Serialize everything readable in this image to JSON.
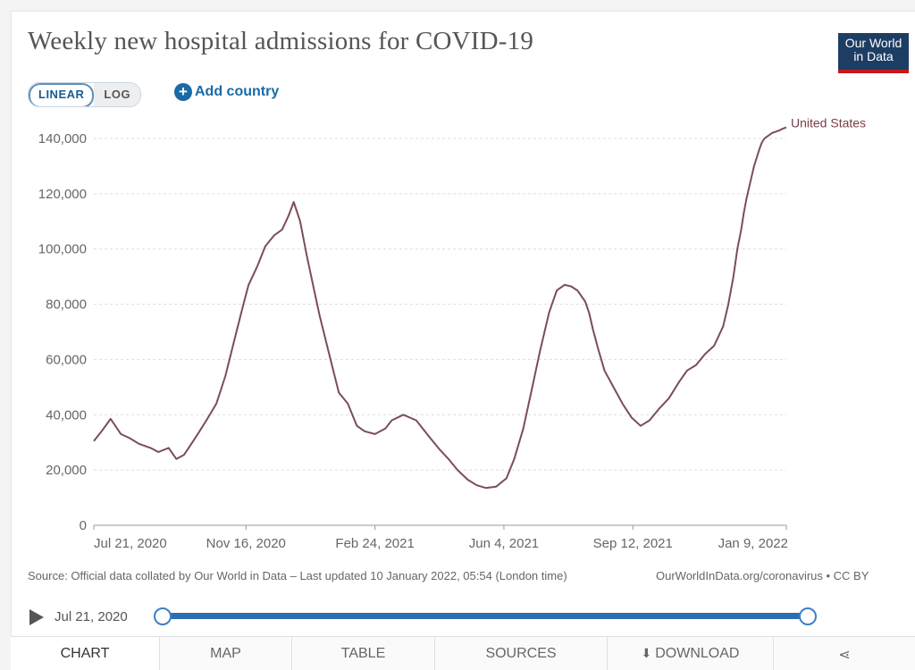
{
  "header": {
    "title": "Weekly new hospital admissions for COVID-19",
    "logo_line1": "Our World",
    "logo_line2": "in Data"
  },
  "controls": {
    "scale_linear": "LINEAR",
    "scale_log": "LOG",
    "add_country": "Add country"
  },
  "chart_data": {
    "type": "line",
    "title": "Weekly new hospital admissions for COVID-19",
    "xlabel": "",
    "ylabel": "",
    "ylim": [
      0,
      140000
    ],
    "y_ticks": [
      "0",
      "20,000",
      "40,000",
      "60,000",
      "80,000",
      "100,000",
      "120,000",
      "140,000"
    ],
    "y_tick_values": [
      0,
      20000,
      40000,
      60000,
      80000,
      100000,
      120000,
      140000
    ],
    "x_tick_labels": [
      "Jul 21, 2020",
      "Nov 16, 2020",
      "Feb 24, 2021",
      "Jun 4, 2021",
      "Sep 12, 2021",
      "Jan 9, 2022"
    ],
    "x_tick_days": [
      0,
      118,
      218,
      318,
      418,
      537
    ],
    "xlim_days": [
      0,
      537
    ],
    "series": [
      {
        "name": "United States",
        "color": "#7a4e55",
        "x_days": [
          0,
          6,
          13,
          21,
          28,
          35,
          44,
          50,
          58,
          64,
          70,
          75,
          82,
          88,
          95,
          102,
          110,
          116,
          120,
          127,
          133,
          140,
          146,
          151,
          155,
          160,
          165,
          170,
          175,
          183,
          190,
          197,
          204,
          210,
          218,
          226,
          231,
          240,
          250,
          261,
          268,
          275,
          282,
          290,
          297,
          304,
          312,
          320,
          326,
          333,
          340,
          346,
          353,
          359,
          365,
          370,
          375,
          381,
          384,
          387,
          391,
          396,
          403,
          410,
          417,
          424,
          431,
          438,
          446,
          454,
          460,
          467,
          474,
          481,
          488,
          492,
          496,
          499,
          502,
          504,
          506,
          508,
          510,
          512,
          514,
          516,
          518,
          520,
          523,
          526,
          529,
          532,
          534,
          537
        ],
        "values": [
          30500,
          34000,
          38500,
          33000,
          31500,
          29500,
          28000,
          26500,
          28000,
          24000,
          25500,
          29000,
          34000,
          38500,
          44000,
          54000,
          69000,
          80000,
          87000,
          94000,
          101000,
          105000,
          107000,
          112000,
          117000,
          110000,
          98000,
          87000,
          76000,
          61000,
          48000,
          44000,
          36000,
          34000,
          33000,
          35000,
          38000,
          40000,
          38000,
          31500,
          27500,
          24000,
          20000,
          16500,
          14500,
          13500,
          14000,
          17000,
          24000,
          35000,
          50000,
          63000,
          77000,
          85000,
          87000,
          86500,
          85000,
          81000,
          77000,
          71000,
          64000,
          56000,
          50000,
          44000,
          39000,
          36000,
          38000,
          42000,
          46000,
          52000,
          56000,
          58000,
          62000,
          65000,
          72000,
          80000,
          90000,
          100000,
          107000,
          113000,
          118000,
          122000,
          126000,
          130000,
          133000,
          136000,
          138500,
          140000,
          141000,
          142000,
          142500,
          143000,
          143500,
          144000
        ],
        "label": "United States"
      }
    ]
  },
  "footer": {
    "source": "Source: Official data collated by Our World in Data – Last updated 10 January 2022, 05:54 (London time)",
    "credit": "OurWorldInData.org/coronavirus • CC BY"
  },
  "timeline": {
    "start_label": "Jul 21, 2020"
  },
  "tabs": {
    "chart": "CHART",
    "map": "MAP",
    "table": "TABLE",
    "sources": "SOURCES",
    "download": "DOWNLOAD"
  }
}
